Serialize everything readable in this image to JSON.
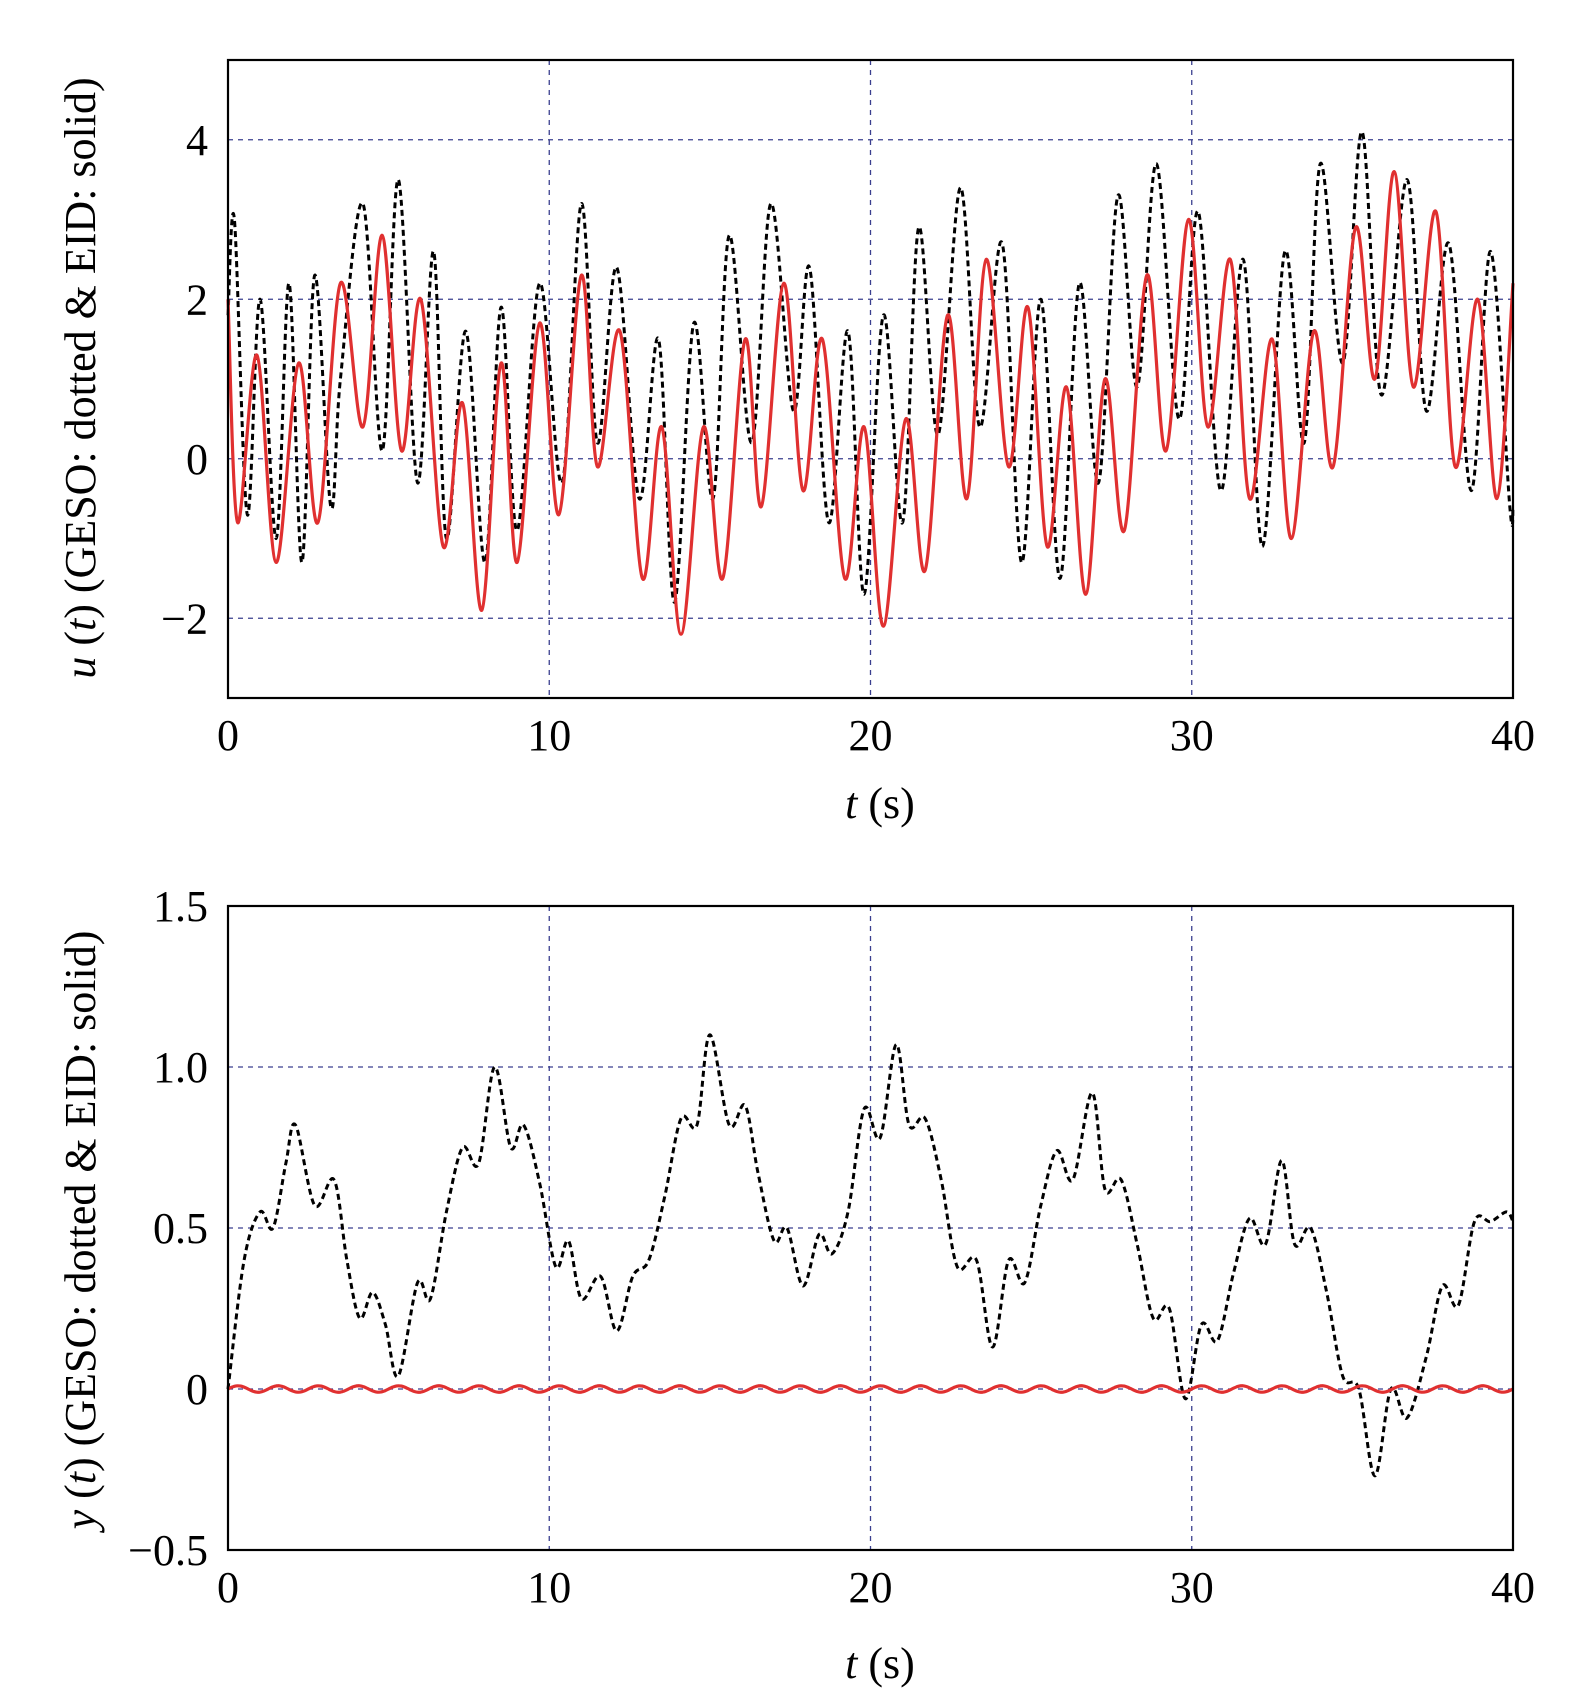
{
  "chart_data": [
    {
      "type": "line",
      "xlabel": {
        "var": "t",
        "unit": " (s)"
      },
      "ylabel": {
        "var": "u",
        "arg": "t",
        "desc": "(GESO: dotted & EID: solid)"
      },
      "xlim": [
        0,
        40
      ],
      "ylim": [
        -3,
        5
      ],
      "xticks": [
        0,
        10,
        20,
        30,
        40
      ],
      "yticks": [
        -2,
        0,
        2,
        4
      ],
      "ytick_labels": [
        "−2",
        "0",
        "2",
        "4"
      ],
      "grid": true,
      "series": [
        {
          "style": "dotted",
          "color": "#000000",
          "x": [
            0,
            0.2,
            0.6,
            1.0,
            1.5,
            1.9,
            2.3,
            2.7,
            3.2,
            3.5,
            4.2,
            4.8,
            5.3,
            5.9,
            6.4,
            6.8,
            7.4,
            8.0,
            8.5,
            9.0,
            9.7,
            10.4,
            11.0,
            11.5,
            12.1,
            12.8,
            13.4,
            13.9,
            14.5,
            15.1,
            15.6,
            16.3,
            16.9,
            17.6,
            18.1,
            18.7,
            19.3,
            19.8,
            20.4,
            21.0,
            21.5,
            22.1,
            22.8,
            23.4,
            24.1,
            24.7,
            25.3,
            25.9,
            26.5,
            27.1,
            27.7,
            28.3,
            28.9,
            29.6,
            30.2,
            30.9,
            31.6,
            32.2,
            32.9,
            33.5,
            34.0,
            34.7,
            35.3,
            35.9,
            36.7,
            37.3,
            38.0,
            38.7,
            39.3,
            39.9,
            40
          ],
          "y": [
            1.8,
            3.0,
            -0.7,
            2.0,
            -1.0,
            2.2,
            -1.3,
            2.3,
            -0.6,
            1.0,
            3.2,
            0.1,
            3.5,
            -0.3,
            2.6,
            -1.0,
            1.6,
            -1.3,
            1.9,
            -0.9,
            2.2,
            -0.3,
            3.2,
            0.2,
            2.4,
            -0.5,
            1.5,
            -1.8,
            1.7,
            -0.5,
            2.8,
            0.2,
            3.2,
            0.6,
            2.4,
            -0.8,
            1.6,
            -1.7,
            1.8,
            -0.8,
            2.9,
            0.3,
            3.4,
            0.4,
            2.7,
            -1.3,
            2.0,
            -1.5,
            2.2,
            -0.3,
            3.3,
            0.9,
            3.7,
            0.5,
            3.1,
            -0.4,
            2.5,
            -1.1,
            2.6,
            0.2,
            3.7,
            1.2,
            4.1,
            0.8,
            3.5,
            0.6,
            2.7,
            -0.4,
            2.6,
            -0.6,
            -0.6
          ]
        },
        {
          "style": "solid",
          "color": "#e03030",
          "x": [
            0,
            0.3,
            0.9,
            1.5,
            2.2,
            2.8,
            3.5,
            4.2,
            4.8,
            5.4,
            6.0,
            6.7,
            7.3,
            7.9,
            8.5,
            9.0,
            9.7,
            10.3,
            11.0,
            11.5,
            12.2,
            12.9,
            13.5,
            14.1,
            14.8,
            15.4,
            16.1,
            16.6,
            17.3,
            17.9,
            18.5,
            19.2,
            19.8,
            20.4,
            21.1,
            21.7,
            22.4,
            23.0,
            23.6,
            24.3,
            24.9,
            25.5,
            26.1,
            26.7,
            27.3,
            27.9,
            28.6,
            29.2,
            29.9,
            30.5,
            31.2,
            31.8,
            32.5,
            33.1,
            33.8,
            34.4,
            35.1,
            35.7,
            36.3,
            36.9,
            37.6,
            38.2,
            38.9,
            39.5,
            40
          ],
          "y": [
            2.0,
            -0.8,
            1.3,
            -1.3,
            1.2,
            -0.8,
            2.2,
            0.4,
            2.8,
            0.1,
            2.0,
            -1.1,
            0.7,
            -1.9,
            1.2,
            -1.3,
            1.7,
            -0.7,
            2.3,
            -0.1,
            1.6,
            -1.5,
            0.4,
            -2.2,
            0.4,
            -1.5,
            1.5,
            -0.6,
            2.2,
            -0.4,
            1.5,
            -1.5,
            0.4,
            -2.1,
            0.5,
            -1.4,
            1.8,
            -0.5,
            2.5,
            -0.1,
            1.9,
            -1.1,
            0.9,
            -1.7,
            1.0,
            -0.9,
            2.3,
            0.1,
            3.0,
            0.4,
            2.5,
            -0.5,
            1.5,
            -1.0,
            1.6,
            -0.1,
            2.9,
            1.0,
            3.6,
            0.9,
            3.1,
            -0.1,
            2.0,
            -0.5,
            2.2
          ]
        }
      ]
    },
    {
      "type": "line",
      "xlabel": {
        "var": "t",
        "unit": " (s)"
      },
      "ylabel": {
        "var": "y",
        "arg": "t",
        "desc": "(GESO: dotted & EID: solid)"
      },
      "xlim": [
        0,
        40
      ],
      "ylim": [
        -0.5,
        1.5
      ],
      "xticks": [
        0,
        10,
        20,
        30,
        40
      ],
      "yticks": [
        -0.5,
        0,
        0.5,
        1.0,
        1.5
      ],
      "ytick_labels": [
        "−0.5",
        "0",
        "0.5",
        "1.0",
        "1.5"
      ],
      "grid": true,
      "series": [
        {
          "style": "dotted",
          "color": "#000000",
          "x": [
            0,
            0.5,
            1.0,
            1.4,
            1.8,
            2.1,
            2.7,
            3.3,
            3.7,
            4.1,
            4.5,
            4.9,
            5.3,
            5.9,
            6.3,
            6.8,
            7.3,
            7.8,
            8.3,
            8.8,
            9.2,
            9.7,
            10.2,
            10.6,
            11.0,
            11.6,
            12.1,
            12.6,
            13.1,
            13.6,
            14.1,
            14.6,
            15.0,
            15.6,
            16.1,
            16.5,
            17.0,
            17.4,
            17.9,
            18.4,
            18.8,
            19.3,
            19.8,
            20.3,
            20.8,
            21.2,
            21.7,
            22.2,
            22.7,
            23.3,
            23.8,
            24.3,
            24.8,
            25.3,
            25.8,
            26.3,
            26.9,
            27.3,
            27.8,
            28.3,
            28.8,
            29.3,
            29.8,
            30.3,
            30.8,
            31.3,
            31.8,
            32.3,
            32.8,
            33.2,
            33.7,
            34.2,
            34.7,
            35.2,
            35.7,
            36.2,
            36.7,
            37.3,
            37.8,
            38.3,
            38.8,
            39.3,
            39.8,
            40
          ],
          "y": [
            0.0,
            0.4,
            0.55,
            0.5,
            0.7,
            0.82,
            0.57,
            0.65,
            0.4,
            0.22,
            0.3,
            0.2,
            0.04,
            0.33,
            0.28,
            0.55,
            0.75,
            0.7,
            1.0,
            0.75,
            0.82,
            0.64,
            0.38,
            0.46,
            0.28,
            0.35,
            0.18,
            0.35,
            0.4,
            0.6,
            0.84,
            0.82,
            1.1,
            0.82,
            0.88,
            0.67,
            0.46,
            0.5,
            0.32,
            0.48,
            0.42,
            0.55,
            0.87,
            0.78,
            1.07,
            0.82,
            0.84,
            0.65,
            0.38,
            0.4,
            0.13,
            0.4,
            0.33,
            0.57,
            0.74,
            0.65,
            0.92,
            0.62,
            0.65,
            0.45,
            0.22,
            0.25,
            -0.03,
            0.2,
            0.15,
            0.36,
            0.53,
            0.45,
            0.71,
            0.45,
            0.5,
            0.3,
            0.04,
            0.0,
            -0.27,
            0.0,
            -0.09,
            0.1,
            0.32,
            0.26,
            0.52,
            0.52,
            0.55,
            0.52
          ]
        },
        {
          "style": "solid",
          "color": "#e03030",
          "x": [
            0,
            40
          ],
          "y": [
            0,
            0
          ],
          "wave": {
            "amplitude": 0.01,
            "period": 1.25
          }
        }
      ]
    }
  ]
}
